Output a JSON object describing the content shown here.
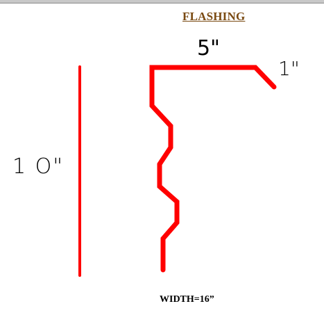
{
  "title": "FLASHING",
  "dimensions": {
    "top_length": "5\"",
    "lip_length": "1\"",
    "height": "1 O\""
  },
  "width_note": "WIDTH=16”",
  "colors": {
    "profile_line": "#ff0000",
    "title": "#7a4a12",
    "text": "#000000"
  }
}
